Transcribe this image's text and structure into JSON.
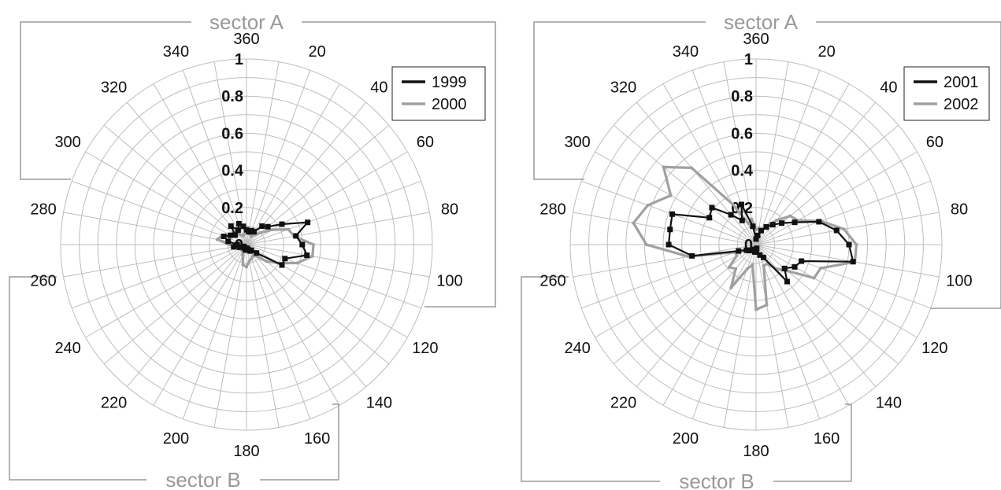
{
  "chart_data": [
    {
      "type": "radar",
      "title": "",
      "angle_labels": [
        "360",
        "20",
        "40",
        "60",
        "80",
        "100",
        "120",
        "140",
        "160",
        "180",
        "200",
        "220",
        "240",
        "260",
        "280",
        "300",
        "320",
        "340"
      ],
      "radial_labels": [
        "0",
        "0.2",
        "0.4",
        "0.6",
        "0.8",
        "1"
      ],
      "rlim": [
        0,
        1
      ],
      "sectors": {
        "top": "sector A",
        "bottom": "sector B"
      },
      "legend": "top-right",
      "grid": true,
      "series": [
        {
          "name": "1999",
          "color": "#111111",
          "markers": true,
          "angles": [
            0,
            10,
            20,
            30,
            40,
            50,
            60,
            70,
            80,
            90,
            100,
            110,
            120,
            130,
            140,
            150,
            160,
            170,
            180,
            190,
            200,
            210,
            220,
            230,
            240,
            250,
            260,
            270,
            280,
            290,
            300,
            310,
            320,
            330,
            340,
            350
          ],
          "values": [
            0.08,
            0.07,
            0.08,
            0.08,
            0.13,
            0.15,
            0.22,
            0.35,
            0.27,
            0.3,
            0.33,
            0.22,
            0.22,
            0.07,
            0.04,
            0.04,
            0.03,
            0.02,
            0.02,
            0.03,
            0.02,
            0.02,
            0.02,
            0.02,
            0.02,
            0.04,
            0.07,
            0.05,
            0.1,
            0.13,
            0.1,
            0.08,
            0.13,
            0.09,
            0.12,
            0.1
          ]
        },
        {
          "name": "2000",
          "color": "#a0a0a0",
          "markers": false,
          "angles": [
            0,
            10,
            20,
            30,
            40,
            50,
            60,
            70,
            80,
            90,
            100,
            110,
            120,
            130,
            140,
            150,
            160,
            170,
            180,
            190,
            200,
            210,
            220,
            230,
            240,
            250,
            260,
            270,
            280,
            290,
            300,
            310,
            320,
            330,
            340,
            350
          ],
          "values": [
            0.07,
            0.06,
            0.06,
            0.05,
            0.07,
            0.1,
            0.16,
            0.24,
            0.26,
            0.36,
            0.36,
            0.29,
            0.2,
            0.14,
            0.08,
            0.07,
            0.08,
            0.09,
            0.12,
            0.11,
            0.06,
            0.04,
            0.03,
            0.04,
            0.04,
            0.05,
            0.07,
            0.09,
            0.16,
            0.14,
            0.09,
            0.07,
            0.09,
            0.06,
            0.05,
            0.06
          ]
        }
      ]
    },
    {
      "type": "radar",
      "title": "",
      "angle_labels": [
        "360",
        "20",
        "40",
        "60",
        "80",
        "100",
        "120",
        "140",
        "160",
        "180",
        "200",
        "220",
        "240",
        "260",
        "280",
        "300",
        "320",
        "340"
      ],
      "radial_labels": [
        "0",
        "0.2",
        "0.4",
        "0.6",
        "0.8",
        "1"
      ],
      "rlim": [
        0,
        1
      ],
      "sectors": {
        "top": "sector A",
        "bottom": "sector B"
      },
      "legend": "top-right",
      "grid": true,
      "series": [
        {
          "name": "2001",
          "color": "#111111",
          "markers": true,
          "angles": [
            0,
            10,
            20,
            30,
            40,
            50,
            60,
            70,
            80,
            90,
            100,
            110,
            120,
            130,
            140,
            150,
            160,
            170,
            180,
            190,
            200,
            210,
            220,
            230,
            240,
            250,
            260,
            270,
            280,
            290,
            300,
            310,
            320,
            330,
            340,
            350
          ],
          "values": [
            0.03,
            0.05,
            0.08,
            0.11,
            0.14,
            0.18,
            0.24,
            0.36,
            0.44,
            0.5,
            0.53,
            0.26,
            0.24,
            0.2,
            0.26,
            0.08,
            0.06,
            0.02,
            0.04,
            0.04,
            0.03,
            0.03,
            0.04,
            0.05,
            0.06,
            0.1,
            0.35,
            0.47,
            0.47,
            0.48,
            0.29,
            0.31,
            0.21,
            0.15,
            0.23,
            0.1
          ]
        },
        {
          "name": "2002",
          "color": "#a0a0a0",
          "markers": false,
          "angles": [
            0,
            10,
            20,
            30,
            40,
            50,
            60,
            70,
            80,
            90,
            100,
            110,
            120,
            130,
            140,
            150,
            160,
            170,
            180,
            190,
            200,
            210,
            220,
            230,
            240,
            250,
            260,
            270,
            280,
            290,
            300,
            310,
            320,
            330,
            340,
            350
          ],
          "values": [
            0.08,
            0.09,
            0.08,
            0.12,
            0.17,
            0.24,
            0.26,
            0.37,
            0.48,
            0.54,
            0.54,
            0.37,
            0.36,
            0.22,
            0.17,
            0.12,
            0.12,
            0.33,
            0.35,
            0.11,
            0.14,
            0.27,
            0.17,
            0.19,
            0.12,
            0.12,
            0.37,
            0.59,
            0.67,
            0.62,
            0.53,
            0.65,
            0.54,
            0.25,
            0.12,
            0.14
          ]
        }
      ]
    }
  ]
}
